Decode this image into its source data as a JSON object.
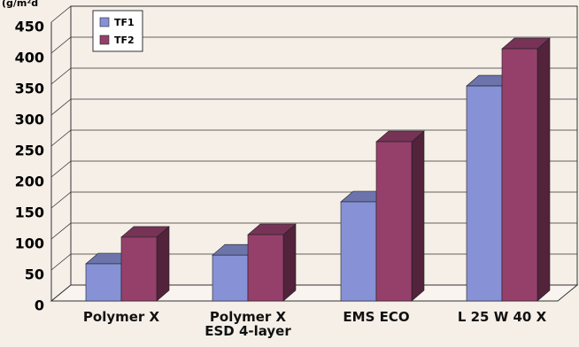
{
  "chart_data": {
    "type": "bar3d",
    "unit_label": "(g/m²d",
    "categories": [
      "Polymer X",
      "Polymer X\nESD 4-layer",
      "EMS ECO",
      "L 25 W 40 X"
    ],
    "series": [
      {
        "name": "TF1",
        "color": "#8791d6",
        "values": [
          60,
          74,
          160,
          347
        ]
      },
      {
        "name": "TF2",
        "color": "#95406b",
        "values": [
          103,
          107,
          257,
          407
        ]
      }
    ],
    "ylim": [
      0,
      450
    ],
    "yticks": [
      0,
      50,
      100,
      150,
      200,
      250,
      300,
      350,
      400,
      450
    ],
    "grid": true,
    "legend": "top-left"
  }
}
